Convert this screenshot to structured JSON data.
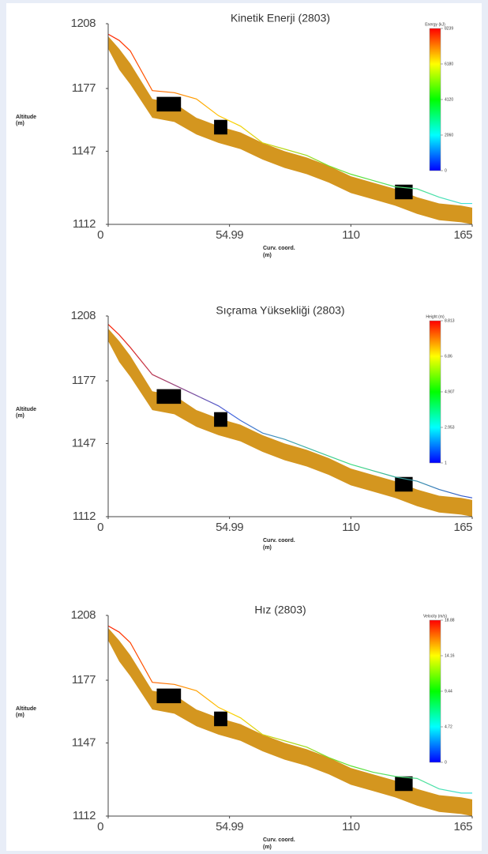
{
  "chart_data": [
    {
      "type": "line",
      "title": "Kinetik Enerji (2803)",
      "ylabel": "Altitude",
      "ylabel_unit": "(m)",
      "xlabel": "Curv. coord.",
      "xlabel_unit": "(m)",
      "xlim": [
        0,
        165
      ],
      "ylim": [
        1112,
        1208
      ],
      "xticks": [
        0,
        54.99,
        110,
        165
      ],
      "yticks": [
        1112,
        1147,
        1177,
        1208
      ],
      "x": [
        0,
        5,
        10,
        20,
        30,
        40,
        50,
        60,
        70,
        80,
        90,
        100,
        110,
        120,
        130,
        140,
        150,
        160,
        165
      ],
      "terrain": {
        "color": "#d4961f",
        "upper": [
          1202,
          1196,
          1189,
          1172,
          1170,
          1163,
          1159,
          1156,
          1151,
          1147,
          1144,
          1140,
          1135,
          1132,
          1129,
          1125,
          1122,
          1121,
          1120
        ],
        "lower": [
          1196,
          1186,
          1179,
          1163,
          1161,
          1155,
          1151,
          1148,
          1143,
          1139,
          1136,
          1132,
          1127,
          1124,
          1121,
          1117,
          1114,
          1113,
          1112
        ]
      },
      "series": [
        {
          "values": [
            1203,
            1200,
            1195,
            1176,
            1175,
            1172,
            1164,
            1159,
            1151,
            1148,
            1145,
            1140,
            1136,
            1133,
            1130,
            1129,
            1125,
            1122,
            1122
          ]
        }
      ],
      "line_colors": [
        "#ff2000",
        "#ffd000",
        "#60e030",
        "#40e0e0"
      ],
      "barriers": [
        {
          "x": [
            22,
            33
          ],
          "y": [
            1166,
            1173
          ]
        },
        {
          "x": [
            48,
            54
          ],
          "y": [
            1155,
            1162
          ]
        },
        {
          "x": [
            130,
            138
          ],
          "y": [
            1124,
            1131
          ]
        }
      ],
      "barrier_color": "#000000",
      "colorbar": {
        "label": "Energy (kJ)",
        "ticks": [
          0,
          2060,
          4120,
          6180,
          8239
        ],
        "colors": [
          "#0000ff",
          "#00ffff",
          "#00ff00",
          "#ffff00",
          "#ff0000"
        ]
      }
    },
    {
      "type": "line",
      "title": "Sıçrama Yüksekliği (2803)",
      "ylabel": "Altitude",
      "ylabel_unit": "(m)",
      "xlabel": "Curv. coord.",
      "xlabel_unit": "(m)",
      "xlim": [
        0,
        165
      ],
      "ylim": [
        1112,
        1208
      ],
      "xticks": [
        0,
        54.99,
        110,
        165
      ],
      "yticks": [
        1112,
        1147,
        1177,
        1208
      ],
      "x": [
        0,
        5,
        10,
        20,
        30,
        40,
        50,
        60,
        70,
        80,
        90,
        100,
        110,
        120,
        130,
        140,
        150,
        160,
        165
      ],
      "terrain": {
        "color": "#d4961f",
        "upper": [
          1202,
          1196,
          1189,
          1172,
          1170,
          1163,
          1159,
          1156,
          1151,
          1147,
          1144,
          1140,
          1135,
          1132,
          1129,
          1125,
          1122,
          1121,
          1120
        ],
        "lower": [
          1196,
          1186,
          1179,
          1163,
          1161,
          1155,
          1151,
          1148,
          1143,
          1139,
          1136,
          1132,
          1127,
          1124,
          1121,
          1117,
          1114,
          1113,
          1112
        ]
      },
      "series": [
        {
          "values": [
            1204,
            1199,
            1193,
            1180,
            1175,
            1170,
            1165,
            1158,
            1152,
            1149,
            1145,
            1141,
            1137,
            1134,
            1131,
            1129,
            1125,
            1122,
            1121
          ]
        }
      ],
      "line_colors": [
        "#ff2000",
        "#4060e0",
        "#40e080",
        "#3050d0"
      ],
      "barriers": [
        {
          "x": [
            22,
            33
          ],
          "y": [
            1166,
            1173
          ]
        },
        {
          "x": [
            48,
            54
          ],
          "y": [
            1155,
            1162
          ]
        },
        {
          "x": [
            130,
            138
          ],
          "y": [
            1124,
            1131
          ]
        }
      ],
      "barrier_color": "#000000",
      "colorbar": {
        "label": "Height (m)",
        "ticks": [
          1.0,
          2.953,
          4.907,
          6.86,
          8.813
        ],
        "colors": [
          "#0000ff",
          "#00ffff",
          "#00ff00",
          "#ffff00",
          "#ff0000"
        ]
      }
    },
    {
      "type": "line",
      "title": "Hız (2803)",
      "ylabel": "Altitude",
      "ylabel_unit": "(m)",
      "xlabel": "Curv. coord.",
      "xlabel_unit": "(m)",
      "xlim": [
        0,
        165
      ],
      "ylim": [
        1112,
        1208
      ],
      "xticks": [
        0,
        54.99,
        110,
        165
      ],
      "yticks": [
        1112,
        1147,
        1177,
        1208
      ],
      "x": [
        0,
        5,
        10,
        20,
        30,
        40,
        50,
        60,
        70,
        80,
        90,
        100,
        110,
        120,
        130,
        140,
        150,
        160,
        165
      ],
      "terrain": {
        "color": "#d4961f",
        "upper": [
          1202,
          1196,
          1189,
          1172,
          1170,
          1163,
          1159,
          1156,
          1151,
          1147,
          1144,
          1140,
          1135,
          1132,
          1129,
          1125,
          1122,
          1121,
          1120
        ],
        "lower": [
          1196,
          1186,
          1179,
          1163,
          1161,
          1155,
          1151,
          1148,
          1143,
          1139,
          1136,
          1132,
          1127,
          1124,
          1121,
          1117,
          1114,
          1113,
          1112
        ]
      },
      "series": [
        {
          "values": [
            1203,
            1200,
            1195,
            1176,
            1175,
            1172,
            1164,
            1159,
            1151,
            1148,
            1145,
            1140,
            1136,
            1133,
            1131,
            1130,
            1125,
            1123,
            1123
          ]
        }
      ],
      "line_colors": [
        "#ff2000",
        "#ffd000",
        "#60e030",
        "#40e0e0"
      ],
      "barriers": [
        {
          "x": [
            22,
            33
          ],
          "y": [
            1166,
            1173
          ]
        },
        {
          "x": [
            48,
            54
          ],
          "y": [
            1155,
            1162
          ]
        },
        {
          "x": [
            130,
            138
          ],
          "y": [
            1124,
            1131
          ]
        }
      ],
      "barrier_color": "#000000",
      "colorbar": {
        "label": "Velocity (m/s)",
        "ticks": [
          0,
          4.72,
          9.44,
          14.16,
          18.88
        ],
        "colors": [
          "#0000ff",
          "#00ffff",
          "#00ff00",
          "#ffff00",
          "#ff0000"
        ]
      }
    }
  ]
}
